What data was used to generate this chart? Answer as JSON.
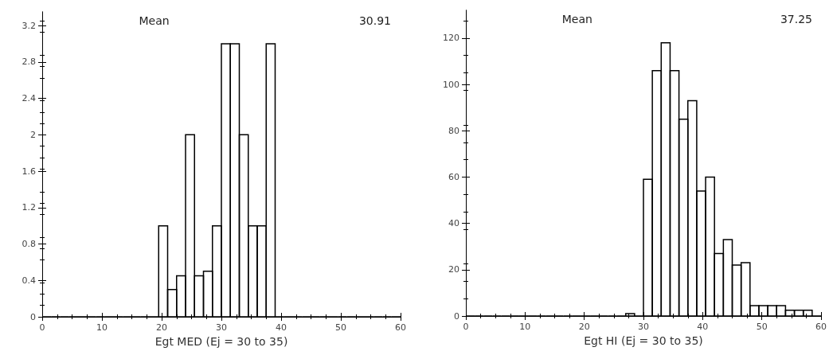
{
  "chart_data": [
    {
      "type": "histogram",
      "xlabel": "Egt MED (Ej = 30 to 35)",
      "annotations": [
        "Mean",
        "30.91"
      ],
      "color": "#000000",
      "bins": [
        0,
        1.5,
        3,
        4.5,
        6,
        7.5,
        9,
        10.5,
        12,
        13.5,
        15,
        16.5,
        18,
        19.5,
        21,
        22.5,
        24,
        25.5,
        27,
        28.5,
        30,
        31.5,
        33,
        34.5,
        36,
        37.5,
        39,
        40.5,
        42,
        43.5,
        45,
        46.5,
        48,
        49.5,
        51,
        52.5,
        54,
        55.5,
        57,
        58.5,
        60
      ],
      "values": [
        0,
        0,
        0,
        0,
        0,
        0,
        0,
        0,
        0,
        0,
        0,
        0,
        0,
        1,
        0.3,
        0.45,
        2,
        0.45,
        0.5,
        1,
        3,
        3,
        2,
        1,
        1,
        3,
        0,
        0,
        0,
        0,
        0,
        0,
        0,
        0,
        0,
        0,
        0,
        0,
        0,
        0
      ],
      "xlim": [
        0,
        60
      ],
      "xticks": [
        0,
        10,
        20,
        30,
        40,
        50,
        60
      ],
      "ylim": [
        0,
        3.35
      ],
      "yticks": [
        0,
        0.4,
        0.8,
        1.2,
        1.6,
        2,
        2.4,
        2.8,
        3.2
      ],
      "grid": false
    },
    {
      "type": "histogram",
      "xlabel": "Egt HI (Ej = 30 to 35)",
      "annotations": [
        "Mean",
        "37.25"
      ],
      "color": "#000000",
      "bins": [
        0,
        1.5,
        3,
        4.5,
        6,
        7.5,
        9,
        10.5,
        12,
        13.5,
        15,
        16.5,
        18,
        19.5,
        21,
        22.5,
        24,
        25.5,
        27,
        28.5,
        30,
        31.5,
        33,
        34.5,
        36,
        37.5,
        39,
        40.5,
        42,
        43.5,
        45,
        46.5,
        48,
        49.5,
        51,
        52.5,
        54,
        55.5,
        57,
        58.5,
        60
      ],
      "values": [
        0,
        0,
        0,
        0,
        0,
        0,
        0,
        0,
        0,
        0,
        0,
        0,
        0,
        0,
        0,
        0,
        0,
        0,
        1,
        0,
        59,
        106,
        118,
        106,
        85,
        93,
        54,
        60,
        27,
        33,
        22,
        23,
        4.5,
        4.5,
        4.5,
        4.5,
        2.5,
        2.5,
        2.5,
        0
      ],
      "xlim": [
        0,
        60
      ],
      "xticks": [
        0,
        10,
        20,
        30,
        40,
        50,
        60
      ],
      "ylim": [
        0,
        132
      ],
      "yticks": [
        0,
        20,
        40,
        60,
        80,
        100,
        120
      ],
      "grid": false
    }
  ]
}
